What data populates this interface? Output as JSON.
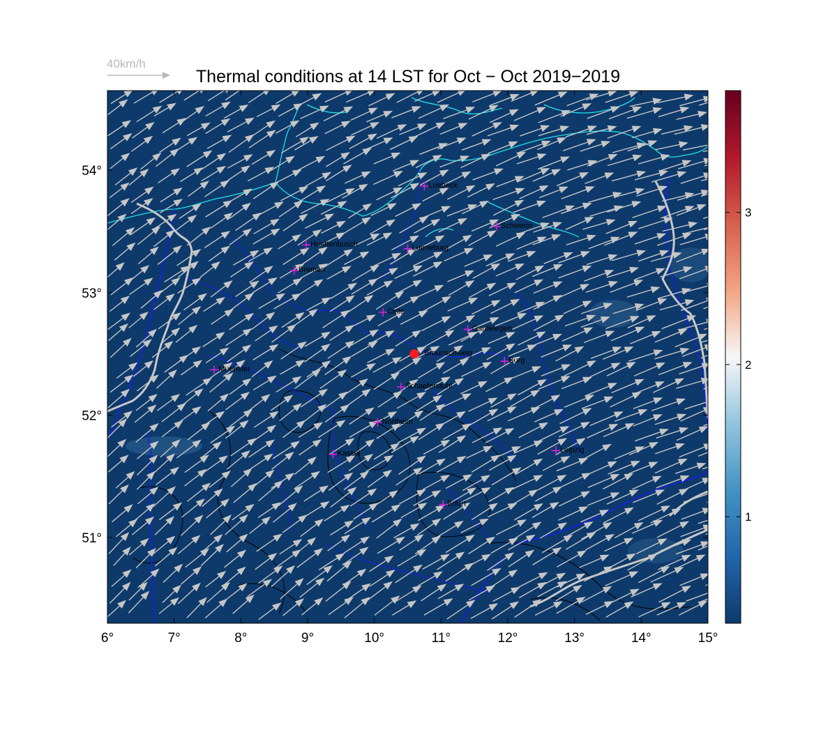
{
  "title": "Thermal conditions at 14 LST for Oct − Oct  2019−2019",
  "wind_reference": {
    "label": "40km/h",
    "speed_kmh": 40
  },
  "map": {
    "lon_range": [
      6,
      15
    ],
    "lat_range": [
      50.3,
      54.65
    ],
    "background_color": "#0d3a6b",
    "coast_color": "#22e0e8",
    "border_color": "#1a1aff",
    "river_color": "#c8c8c8",
    "contour_color": "#000000",
    "arrow_color": "#c6c6c6",
    "x_ticks": [
      {
        "value": 6,
        "label": "6°"
      },
      {
        "value": 7,
        "label": "7°"
      },
      {
        "value": 8,
        "label": "8°"
      },
      {
        "value": 9,
        "label": "9°"
      },
      {
        "value": 10,
        "label": "10°"
      },
      {
        "value": 11,
        "label": "11°"
      },
      {
        "value": 12,
        "label": "12°"
      },
      {
        "value": 13,
        "label": "13°"
      },
      {
        "value": 14,
        "label": "14°"
      },
      {
        "value": 15,
        "label": "15°"
      }
    ],
    "y_ticks": [
      {
        "value": 51,
        "label": "51°"
      },
      {
        "value": 52,
        "label": "52°"
      },
      {
        "value": 53,
        "label": "53°"
      },
      {
        "value": 54,
        "label": "54°"
      }
    ],
    "cities": [
      {
        "name": "Luebeck",
        "lon": 10.75,
        "lat": 53.87
      },
      {
        "name": "Schwerin",
        "lon": 11.83,
        "lat": 53.54
      },
      {
        "name": "Huettenbusch",
        "lon": 8.98,
        "lat": 53.39
      },
      {
        "name": "Lueneburg",
        "lon": 10.5,
        "lat": 53.36
      },
      {
        "name": "Bremen",
        "lon": 8.8,
        "lat": 53.18
      },
      {
        "name": "Celle",
        "lon": 10.13,
        "lat": 52.84
      },
      {
        "name": "Gardelegen",
        "lon": 11.4,
        "lat": 52.7
      },
      {
        "name": "Braunschweig",
        "lon": 10.6,
        "lat": 52.5,
        "marker": "dot"
      },
      {
        "name": "Burg",
        "lon": 11.95,
        "lat": 52.44
      },
      {
        "name": "Muenster",
        "lon": 7.6,
        "lat": 52.37
      },
      {
        "name": "Schaeferstuhl",
        "lon": 10.4,
        "lat": 52.23
      },
      {
        "name": "Northeim",
        "lon": 10.05,
        "lat": 51.94
      },
      {
        "name": "Kassel",
        "lon": 9.38,
        "lat": 51.68
      },
      {
        "name": "Leipzig",
        "lon": 12.72,
        "lat": 51.71
      },
      {
        "name": "Erfurt",
        "lon": 11.03,
        "lat": 51.27
      }
    ]
  },
  "colorbar": {
    "range": [
      0.3,
      3.8
    ],
    "ticks": [
      {
        "value": 1,
        "label": "1"
      },
      {
        "value": 2,
        "label": "2"
      },
      {
        "value": 3,
        "label": "3"
      }
    ],
    "colors": [
      "#0d3a6b",
      "#2166ac",
      "#4393c3",
      "#92c5de",
      "#f7f7f7",
      "#f4a582",
      "#d6604d",
      "#b2182b",
      "#67001f"
    ]
  }
}
